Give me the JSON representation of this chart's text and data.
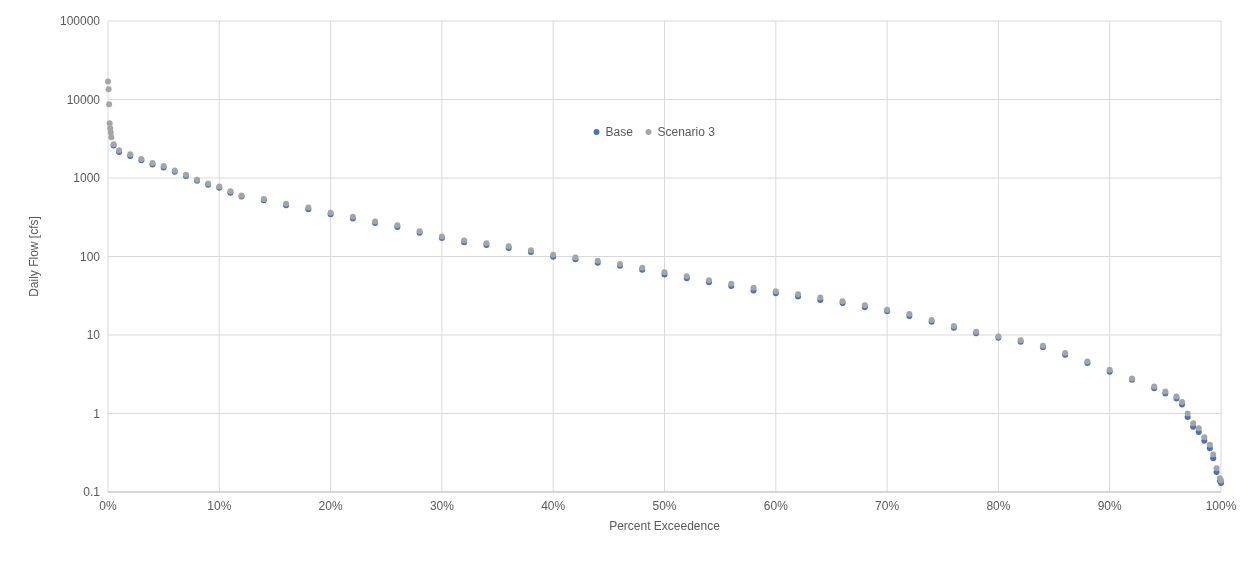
{
  "chart_data": {
    "type": "scatter",
    "xlabel": "Percent Exceedence",
    "ylabel": "Daily Flow [cfs]",
    "x": [
      0.5,
      1,
      2,
      3,
      4,
      5,
      6,
      7,
      8,
      9,
      10,
      11,
      12,
      14,
      16,
      18,
      20,
      22,
      24,
      26,
      28,
      30,
      32,
      34,
      36,
      38,
      40,
      42,
      44,
      46,
      48,
      50,
      52,
      54,
      56,
      58,
      60,
      62,
      64,
      66,
      68,
      70,
      72,
      74,
      76,
      78,
      80,
      82,
      84,
      86,
      88,
      90,
      92,
      94,
      95,
      96,
      96.5,
      97,
      97.5,
      98,
      98.5,
      99,
      99.3,
      99.6,
      99.9,
      100
    ],
    "series": [
      {
        "name": "Base",
        "color": "#4472c4",
        "values": [
          2600,
          2150,
          1900,
          1680,
          1490,
          1360,
          1200,
          1060,
          920,
          820,
          750,
          650,
          580,
          520,
          450,
          400,
          345,
          305,
          268,
          238,
          200,
          172,
          152,
          140,
          128,
          114,
          99,
          92,
          83,
          76,
          68,
          59,
          53,
          47,
          42,
          37,
          34,
          31,
          28,
          25.5,
          22.5,
          20,
          17.5,
          14.8,
          12.4,
          10.5,
          9.2,
          8.2,
          7,
          5.6,
          4.4,
          3.4,
          2.7,
          2.1,
          1.8,
          1.55,
          1.3,
          0.9,
          0.68,
          0.58,
          0.45,
          0.36,
          0.27,
          0.18,
          0.14,
          0.13
        ]
      },
      {
        "name": "Scenario 3",
        "color": "#a5a5a5",
        "x": [
          0,
          0.05,
          0.1,
          0.15,
          0.2,
          0.25,
          0.3,
          0.5,
          1,
          2,
          3,
          4,
          5,
          6,
          7,
          8,
          9,
          10,
          11,
          12,
          14,
          16,
          18,
          20,
          22,
          24,
          26,
          28,
          30,
          32,
          34,
          36,
          38,
          40,
          42,
          44,
          46,
          48,
          50,
          52,
          54,
          56,
          58,
          60,
          62,
          64,
          66,
          68,
          70,
          72,
          74,
          76,
          78,
          80,
          82,
          84,
          86,
          88,
          90,
          92,
          94,
          95,
          96,
          96.5,
          97,
          97.5,
          98,
          98.5,
          99,
          99.3,
          99.6,
          99.9,
          100
        ],
        "values": [
          17000,
          13500,
          8700,
          5000,
          4300,
          3800,
          3300,
          2700,
          2250,
          2000,
          1750,
          1550,
          1420,
          1250,
          1100,
          950,
          850,
          780,
          680,
          600,
          540,
          470,
          420,
          360,
          320,
          280,
          250,
          210,
          180,
          160,
          148,
          135,
          120,
          105,
          97,
          88,
          80,
          72,
          63,
          56,
          50,
          45,
          40,
          36,
          33,
          30,
          27,
          24,
          21,
          18.5,
          15.5,
          13,
          11,
          9.6,
          8.6,
          7.3,
          5.9,
          4.6,
          3.6,
          2.8,
          2.2,
          1.9,
          1.65,
          1.4,
          1,
          0.75,
          0.65,
          0.5,
          0.4,
          0.3,
          0.2,
          0.15,
          0.14
        ]
      }
    ],
    "xlim": [
      0,
      100
    ],
    "xticks": [
      {
        "value": 0,
        "label": "0%"
      },
      {
        "value": 10,
        "label": "10%"
      },
      {
        "value": 20,
        "label": "20%"
      },
      {
        "value": 30,
        "label": "30%"
      },
      {
        "value": 40,
        "label": "40%"
      },
      {
        "value": 50,
        "label": "50%"
      },
      {
        "value": 60,
        "label": "60%"
      },
      {
        "value": 70,
        "label": "70%"
      },
      {
        "value": 80,
        "label": "80%"
      },
      {
        "value": 90,
        "label": "90%"
      },
      {
        "value": 100,
        "label": "100%"
      }
    ],
    "ylim": [
      0.1,
      100000
    ],
    "yticks": [
      0.1,
      1,
      10,
      100,
      1000,
      10000,
      100000
    ],
    "log": true,
    "grid": true,
    "legend": "top",
    "marker": "circle"
  }
}
